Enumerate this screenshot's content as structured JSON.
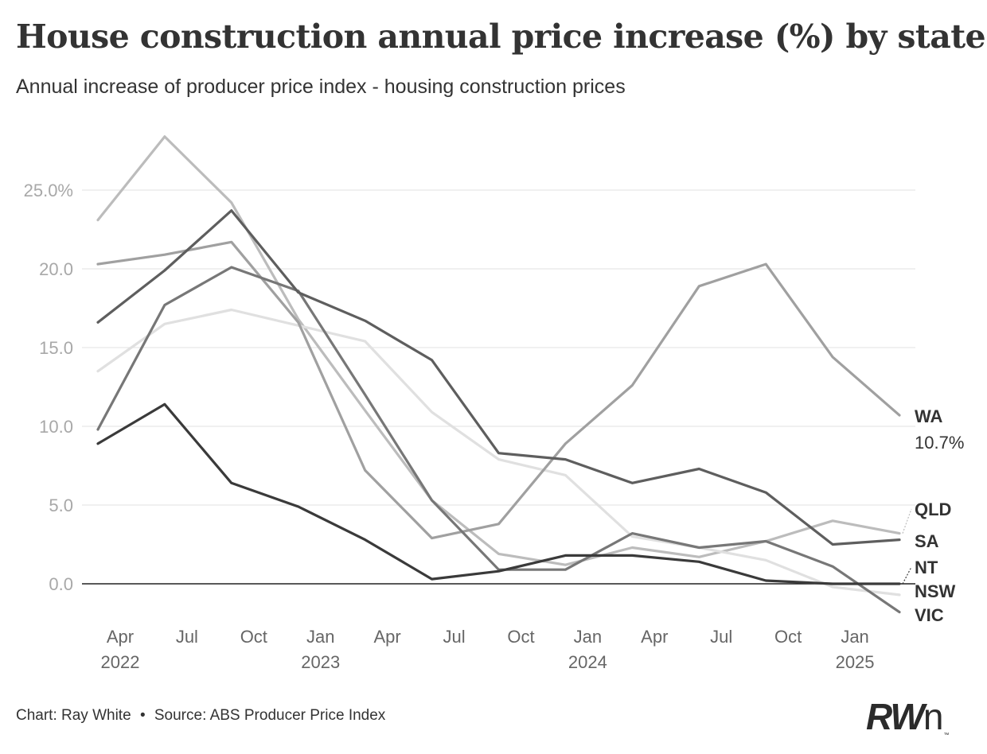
{
  "title": "House construction annual price increase (%) by state",
  "subtitle": "Annual increase of producer price index - housing construction prices",
  "footer": {
    "chart_credit": "Chart: Ray White",
    "separator": "•",
    "source": "Source: ABS Producer Price Index"
  },
  "logo": {
    "main": "RW",
    "tail": "n",
    "tm": "™"
  },
  "chart_data": {
    "type": "line",
    "x": [
      "2022-03",
      "2022-06",
      "2022-09",
      "2022-12",
      "2023-03",
      "2023-06",
      "2023-09",
      "2023-12",
      "2024-03",
      "2024-06",
      "2024-09",
      "2024-12",
      "2025-03"
    ],
    "x_ticks": [
      {
        "date": "2022-04",
        "label": "Apr",
        "year": "2022"
      },
      {
        "date": "2022-07",
        "label": "Jul",
        "year": ""
      },
      {
        "date": "2022-10",
        "label": "Oct",
        "year": ""
      },
      {
        "date": "2023-01",
        "label": "Jan",
        "year": "2023"
      },
      {
        "date": "2023-04",
        "label": "Apr",
        "year": ""
      },
      {
        "date": "2023-07",
        "label": "Jul",
        "year": ""
      },
      {
        "date": "2023-10",
        "label": "Oct",
        "year": ""
      },
      {
        "date": "2024-01",
        "label": "Jan",
        "year": "2024"
      },
      {
        "date": "2024-04",
        "label": "Apr",
        "year": ""
      },
      {
        "date": "2024-07",
        "label": "Jul",
        "year": ""
      },
      {
        "date": "2024-10",
        "label": "Oct",
        "year": ""
      },
      {
        "date": "2025-01",
        "label": "Jan",
        "year": "2025"
      }
    ],
    "y_ticks": [
      {
        "value": 0,
        "label": "0.0"
      },
      {
        "value": 5,
        "label": "5.0"
      },
      {
        "value": 10,
        "label": "10.0"
      },
      {
        "value": 15,
        "label": "15.0"
      },
      {
        "value": 20,
        "label": "20.0"
      },
      {
        "value": 25,
        "label": "25.0%"
      }
    ],
    "ylim": [
      -3,
      29
    ],
    "grid": true,
    "series": [
      {
        "name": "QLD",
        "color": "#bcbcbc",
        "values": [
          23.1,
          28.4,
          24.2,
          16.8,
          11.0,
          5.3,
          1.9,
          1.2,
          2.3,
          1.7,
          2.7,
          4.0,
          3.2
        ]
      },
      {
        "name": "NSW",
        "color": "#e0e0e0",
        "values": [
          13.5,
          16.5,
          17.4,
          16.4,
          15.4,
          10.9,
          7.9,
          6.9,
          3.0,
          2.3,
          1.5,
          -0.2,
          -0.7
        ]
      },
      {
        "name": "WA",
        "value_label": "10.7%",
        "color": "#a0a0a0",
        "values": [
          20.3,
          20.9,
          21.7,
          16.6,
          7.2,
          2.9,
          3.8,
          8.9,
          12.6,
          18.9,
          20.3,
          14.4,
          10.7
        ]
      },
      {
        "name": "VIC",
        "color": "#777777",
        "values": [
          9.8,
          17.7,
          20.1,
          18.6,
          12.0,
          5.3,
          0.9,
          0.9,
          3.2,
          2.3,
          2.7,
          1.1,
          -1.8
        ]
      },
      {
        "name": "SA",
        "color": "#5e5e5e",
        "values": [
          16.6,
          19.9,
          23.7,
          18.5,
          16.7,
          14.2,
          8.3,
          7.9,
          6.4,
          7.3,
          5.8,
          2.5,
          2.8
        ]
      },
      {
        "name": "NT",
        "color": "#3a3a3a",
        "values": [
          8.9,
          11.4,
          6.4,
          4.9,
          2.8,
          0.3,
          0.8,
          1.8,
          1.8,
          1.4,
          0.2,
          0.0,
          0.0
        ]
      }
    ]
  }
}
